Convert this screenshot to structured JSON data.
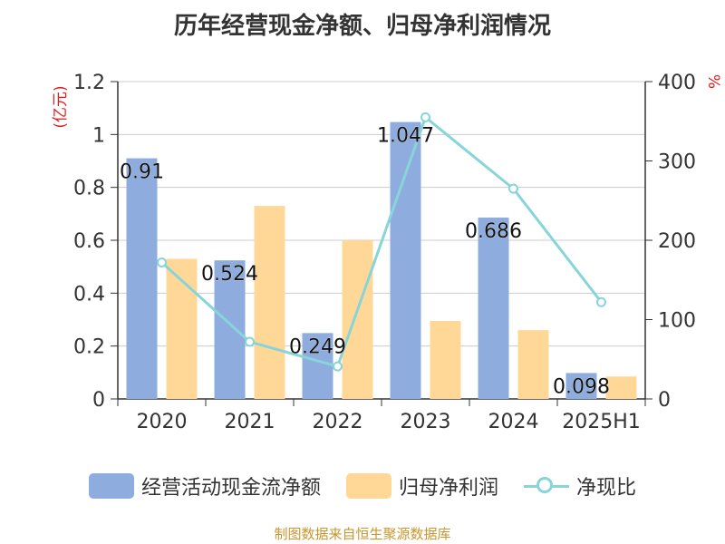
{
  "chart_data": {
    "type": "bar",
    "title": "历年经营现金净额、归母净利润情况",
    "categories": [
      "2020",
      "2021",
      "2022",
      "2023",
      "2024",
      "2025H1"
    ],
    "y_left_unit": "(亿元)",
    "y_right_unit": "%",
    "y_left_lim": [
      0,
      1.2
    ],
    "y_left_ticks": [
      "0",
      "0.2",
      "0.4",
      "0.6",
      "0.8",
      "1",
      "1.2"
    ],
    "y_right_lim": [
      0,
      400
    ],
    "y_right_ticks": [
      "0",
      "100",
      "200",
      "300",
      "400"
    ],
    "grid": true,
    "legend_position": "bottom",
    "series": [
      {
        "name": "经营活动现金流净额",
        "type": "bar",
        "axis": "left",
        "color": "#8eadde",
        "values": [
          0.91,
          0.524,
          0.249,
          1.047,
          0.686,
          0.098
        ],
        "labels": [
          "0.91",
          "0.524",
          "0.249",
          "1.047",
          "0.686",
          "0.098"
        ]
      },
      {
        "name": "归母净利润",
        "type": "bar",
        "axis": "left",
        "color": "#ffd898",
        "values": [
          0.53,
          0.73,
          0.6,
          0.295,
          0.26,
          0.085
        ]
      },
      {
        "name": "净现比",
        "type": "line",
        "axis": "right",
        "color": "#87d4d9",
        "values": [
          172,
          72,
          41,
          355,
          265,
          122
        ]
      }
    ]
  },
  "source_text": "制图数据来自恒生聚源数据库"
}
